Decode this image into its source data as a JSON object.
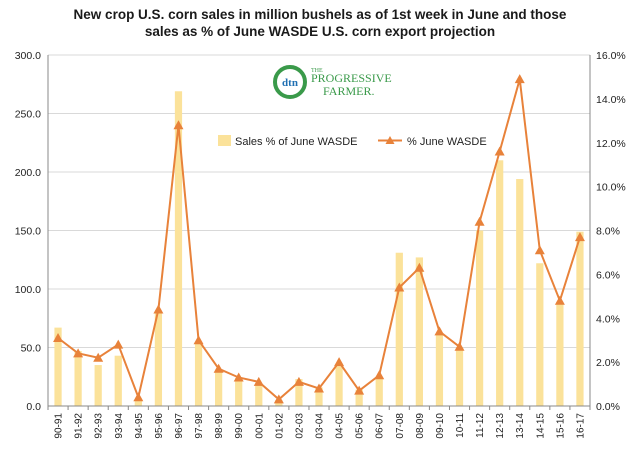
{
  "chart_data": {
    "type": "bar",
    "title_line1": "New crop U.S. corn sales in million bushels as of 1st week in June and those",
    "title_line2": "sales as %  of June WASDE U.S. corn export projection",
    "categories": [
      "90-91",
      "91-92",
      "92-93",
      "93-94",
      "94-95",
      "95-96",
      "96-97",
      "97-98",
      "98-99",
      "99-00",
      "00-01",
      "01-02",
      "02-03",
      "03-04",
      "04-05",
      "05-06",
      "06-07",
      "07-08",
      "08-09",
      "09-10",
      "10-11",
      "11-12",
      "12-13",
      "13-14",
      "14-15",
      "15-16",
      "16-17"
    ],
    "series": [
      {
        "name": "Sales % of June WASDE",
        "type": "bar",
        "axis": "left",
        "color": "#fbe29a",
        "values": [
          67,
          47,
          35,
          43,
          6,
          80,
          269,
          55,
          31,
          24,
          18,
          5,
          23,
          16,
          34,
          14,
          24,
          131,
          127,
          61,
          50,
          150,
          210,
          194,
          122,
          89,
          149
        ]
      },
      {
        "name": "% June WASDE",
        "type": "line",
        "axis": "right",
        "color": "#e8823a",
        "values": [
          3.1,
          2.4,
          2.2,
          2.8,
          0.4,
          4.4,
          12.8,
          3.0,
          1.7,
          1.3,
          1.1,
          0.3,
          1.1,
          0.8,
          2.0,
          0.7,
          1.4,
          5.4,
          6.3,
          3.4,
          2.7,
          8.4,
          11.6,
          14.9,
          7.1,
          4.8,
          7.7
        ]
      }
    ],
    "y_left_ticks": [
      "0.0",
      "50.0",
      "100.0",
      "150.0",
      "200.0",
      "250.0",
      "300.0"
    ],
    "y_left_lim": [
      0,
      300
    ],
    "y_right_ticks": [
      "0.0%",
      "2.0%",
      "4.0%",
      "6.0%",
      "8.0%",
      "10.0%",
      "12.0%",
      "14.0%",
      "16.0%"
    ],
    "y_right_lim": [
      0,
      16
    ],
    "grid": true,
    "legend_position": "upper-center"
  },
  "logo": {
    "mark": "dtn",
    "line1": "PROGRESSIVE",
    "line2": "FARMER.",
    "the": "THE"
  }
}
